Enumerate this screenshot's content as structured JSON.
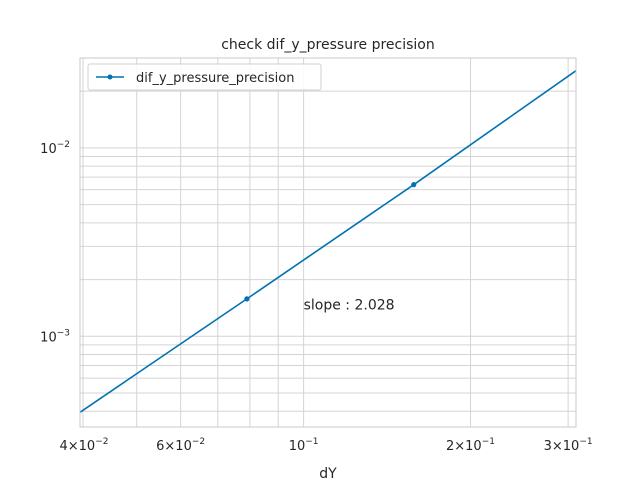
{
  "chart_data": {
    "type": "line",
    "title": "check dif_y_pressure precision",
    "xlabel": "dY",
    "ylabel": "",
    "xscale": "log",
    "yscale": "log",
    "xlim": [
      0.0395,
      0.31
    ],
    "ylim": [
      0.00033,
      0.03
    ],
    "grid": true,
    "legend_position": "upper left",
    "series": [
      {
        "name": "dif_y_pressure_precision",
        "color": "#0072B2",
        "marker": "o",
        "x": [
          0.0395,
          0.079,
          0.158,
          0.31
        ],
        "y": [
          0.000395,
          0.00158,
          0.00638,
          0.0257
        ]
      }
    ],
    "marker_points": [
      1,
      2
    ],
    "x_ticks": [
      {
        "value": 0.04,
        "mantissa": "4×10",
        "exp": "−2"
      },
      {
        "value": 0.06,
        "mantissa": "6×10",
        "exp": "−2"
      },
      {
        "value": 0.1,
        "mantissa": "10",
        "exp": "−1"
      },
      {
        "value": 0.2,
        "mantissa": "2×10",
        "exp": "−1"
      },
      {
        "value": 0.3,
        "mantissa": "3×10",
        "exp": "−1"
      }
    ],
    "x_minor_grid": [
      0.05,
      0.07,
      0.08,
      0.09
    ],
    "y_ticks": [
      {
        "value": 0.001,
        "mantissa": "10",
        "exp": "−3"
      },
      {
        "value": 0.01,
        "mantissa": "10",
        "exp": "−2"
      }
    ],
    "y_minor_grid": [
      0.0004,
      0.0005,
      0.0006,
      0.0007,
      0.0008,
      0.0009,
      0.002,
      0.003,
      0.004,
      0.005,
      0.006,
      0.007,
      0.008,
      0.009,
      0.02,
      0.03
    ],
    "annotations": [
      {
        "text": "slope : 2.028",
        "x": 0.1,
        "y": 0.00139
      }
    ]
  }
}
